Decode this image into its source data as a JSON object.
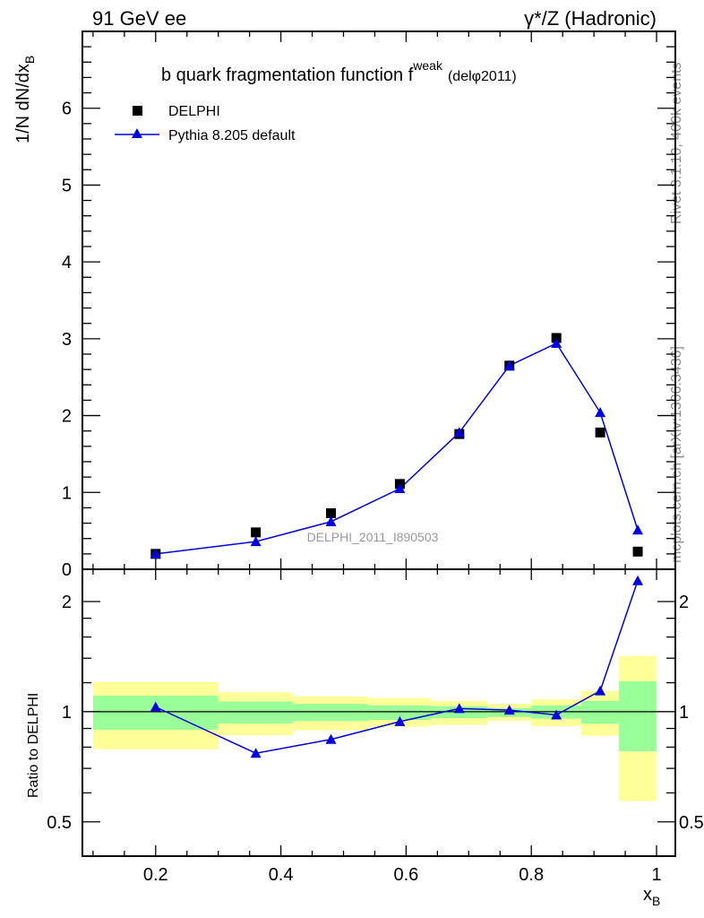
{
  "header": {
    "left": "91 GeV ee",
    "right": "γ*/Z (Hadronic)"
  },
  "side_labels": {
    "rivet": "Rivet 3.1.10,  400k events",
    "mcplots": "mcplots.cern.ch [arXiv:1306.3436]"
  },
  "watermark": "DELPHI_2011_I890503",
  "chart_data": [
    {
      "type": "scatter",
      "title": "b quark fragmentation function f",
      "title_sup": "weak",
      "title_suffix": "(delφ2011)",
      "ylabel": "1/N dN/dx",
      "ylabel_sub": "B",
      "xlim": [
        0.083,
        1.03
      ],
      "ylim": [
        0,
        7
      ],
      "yticks": [
        0,
        1,
        2,
        3,
        4,
        5,
        6
      ],
      "legend_position": "top-left",
      "series": [
        {
          "name": "DELPHI",
          "marker": "square",
          "color": "#000000",
          "x": [
            0.2,
            0.36,
            0.48,
            0.59,
            0.685,
            0.765,
            0.84,
            0.91,
            0.97
          ],
          "y": [
            0.2,
            0.48,
            0.73,
            1.11,
            1.76,
            2.65,
            3.01,
            1.78,
            0.23
          ]
        },
        {
          "name": "Pythia 8.205 default",
          "marker": "triangle",
          "color": "#0000dd",
          "x": [
            0.2,
            0.36,
            0.48,
            0.59,
            0.685,
            0.765,
            0.84,
            0.91,
            0.97
          ],
          "y": [
            0.2,
            0.36,
            0.62,
            1.05,
            1.78,
            2.65,
            2.94,
            2.04,
            0.51
          ]
        }
      ]
    },
    {
      "type": "line",
      "ylabel": "Ratio to DELPHI",
      "xlabel": "x",
      "xlabel_sub": "B",
      "yscale": "log",
      "xlim": [
        0.083,
        1.03
      ],
      "ylim": [
        0.403,
        2.45
      ],
      "yticks": [
        0.5,
        1,
        2
      ],
      "xticks": [
        0.2,
        0.4,
        0.6,
        0.8,
        1
      ],
      "bin_edges": [
        0.1,
        0.3,
        0.42,
        0.54,
        0.64,
        0.73,
        0.8,
        0.88,
        0.94,
        1.0
      ],
      "band_outer": {
        "color": "#ffff99",
        "lo": [
          0.79,
          0.863,
          0.89,
          0.91,
          0.92,
          0.943,
          0.913,
          0.86,
          0.57
        ],
        "hi": [
          1.206,
          1.13,
          1.1,
          1.09,
          1.07,
          1.05,
          1.08,
          1.14,
          1.42
        ]
      },
      "band_inner": {
        "color": "#99ff99",
        "lo": [
          0.893,
          0.929,
          0.943,
          0.95,
          0.96,
          0.967,
          0.957,
          0.927,
          0.78
        ],
        "hi": [
          1.107,
          1.066,
          1.05,
          1.04,
          1.035,
          1.023,
          1.04,
          1.07,
          1.21
        ]
      },
      "series": [
        {
          "name": "Pythia 8.205 default",
          "color": "#0000dd",
          "x": [
            0.2,
            0.36,
            0.48,
            0.59,
            0.685,
            0.765,
            0.84,
            0.91,
            0.97
          ],
          "y": [
            1.03,
            0.77,
            0.84,
            0.94,
            1.02,
            1.01,
            0.98,
            1.14,
            2.28
          ]
        }
      ]
    }
  ]
}
